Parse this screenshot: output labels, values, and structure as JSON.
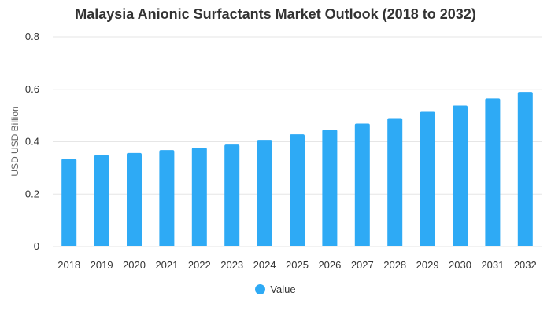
{
  "chart_data": {
    "type": "bar",
    "title": "Malaysia Anionic Surfactants Market Outlook (2018 to 2032)",
    "xlabel": "",
    "ylabel": "USD USD Billion",
    "ylim": [
      0,
      0.8
    ],
    "yticks": [
      "0",
      "0.2",
      "0.4",
      "0.6",
      "0.8"
    ],
    "categories": [
      "2018",
      "2019",
      "2020",
      "2021",
      "2022",
      "2023",
      "2024",
      "2025",
      "2026",
      "2027",
      "2028",
      "2029",
      "2030",
      "2031",
      "2032"
    ],
    "series": [
      {
        "name": "Value",
        "color": "#2eaaf5",
        "values": [
          0.335,
          0.348,
          0.357,
          0.368,
          0.377,
          0.389,
          0.407,
          0.428,
          0.446,
          0.469,
          0.49,
          0.514,
          0.538,
          0.565,
          0.59
        ]
      }
    ],
    "grid": true,
    "legend_position": "bottom"
  }
}
